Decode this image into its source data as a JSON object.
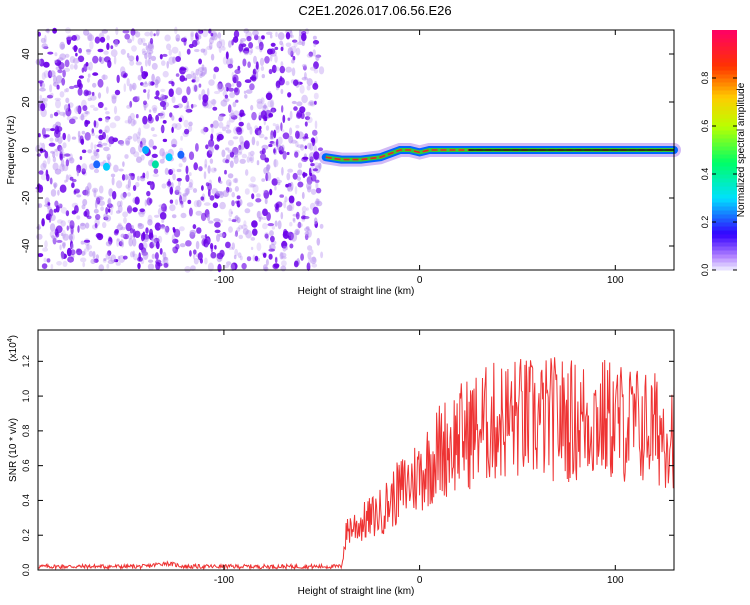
{
  "figure_title": "C2E1.2026.017.06.56.E26",
  "colors": {
    "snr_line": "#ee3333",
    "axis": "#000000",
    "spectrogram_low": "#b48cf0",
    "spectrogram_high": "#6a00e8"
  },
  "chart_data": [
    {
      "type": "heatmap",
      "title": "C2E1.2026.017.06.56.E26",
      "xlabel": "Height of straight line (km)",
      "ylabel": "Frequency (Hz)",
      "xlim": [
        -195,
        130
      ],
      "ylim": [
        -50,
        50
      ],
      "x_ticks": [
        -100,
        0,
        100
      ],
      "y_ticks": [
        40,
        20,
        0,
        -20,
        -40
      ],
      "noise_region_x": [
        -195,
        -50
      ],
      "signal_trace": [
        {
          "x": -48,
          "y": -3
        },
        {
          "x": -40,
          "y": -4
        },
        {
          "x": -30,
          "y": -4
        },
        {
          "x": -20,
          "y": -3
        },
        {
          "x": -10,
          "y": 0
        },
        {
          "x": -5,
          "y": 0
        },
        {
          "x": 0,
          "y": -1
        },
        {
          "x": 5,
          "y": 0
        },
        {
          "x": 15,
          "y": 0
        },
        {
          "x": 30,
          "y": 0
        },
        {
          "x": 60,
          "y": 0
        },
        {
          "x": 90,
          "y": 0
        },
        {
          "x": 110,
          "y": 0
        },
        {
          "x": 130,
          "y": 0
        }
      ],
      "colorbar": {
        "label": "Normalized spectral amplitude",
        "range": [
          0.0,
          1.0
        ],
        "ticks": [
          0.0,
          0.2,
          0.4,
          0.6,
          0.8
        ],
        "tick_labels": [
          "0.0",
          "0.2",
          "0.4",
          "0.6",
          "0.8"
        ]
      }
    },
    {
      "type": "line",
      "xlabel": "Height of straight line (km)",
      "ylabel": "SNR (10 * v/v)",
      "scale_label": "(x10",
      "scale_exponent": "4",
      "scale_close": ")",
      "xlim": [
        -195,
        130
      ],
      "ylim": [
        0,
        1.38
      ],
      "x_ticks": [
        -100,
        0,
        100
      ],
      "y_ticks": [
        0.0,
        0.2,
        0.4,
        0.6,
        0.8,
        1.0,
        1.2
      ],
      "y_tick_labels": [
        "0.0",
        "0.2",
        "0.4",
        "0.6",
        "0.8",
        "1.0",
        "1.2"
      ],
      "series": [
        {
          "name": "SNR",
          "envelope": [
            {
              "x": -195,
              "y": 0.02
            },
            {
              "x": -140,
              "y": 0.02
            },
            {
              "x": -130,
              "y": 0.04
            },
            {
              "x": -120,
              "y": 0.02
            },
            {
              "x": -40,
              "y": 0.02
            },
            {
              "x": -37,
              "y": 0.25
            },
            {
              "x": -30,
              "y": 0.28
            },
            {
              "x": -20,
              "y": 0.35
            },
            {
              "x": -10,
              "y": 0.48
            },
            {
              "x": 0,
              "y": 0.58
            },
            {
              "x": 10,
              "y": 0.72
            },
            {
              "x": 20,
              "y": 0.8
            },
            {
              "x": 30,
              "y": 0.86
            },
            {
              "x": 40,
              "y": 0.9
            },
            {
              "x": 50,
              "y": 0.92
            },
            {
              "x": 60,
              "y": 0.9
            },
            {
              "x": 70,
              "y": 0.92
            },
            {
              "x": 80,
              "y": 0.9
            },
            {
              "x": 90,
              "y": 0.92
            },
            {
              "x": 100,
              "y": 0.9
            },
            {
              "x": 110,
              "y": 0.88
            },
            {
              "x": 120,
              "y": 0.85
            },
            {
              "x": 130,
              "y": 0.85
            }
          ]
        }
      ]
    }
  ]
}
